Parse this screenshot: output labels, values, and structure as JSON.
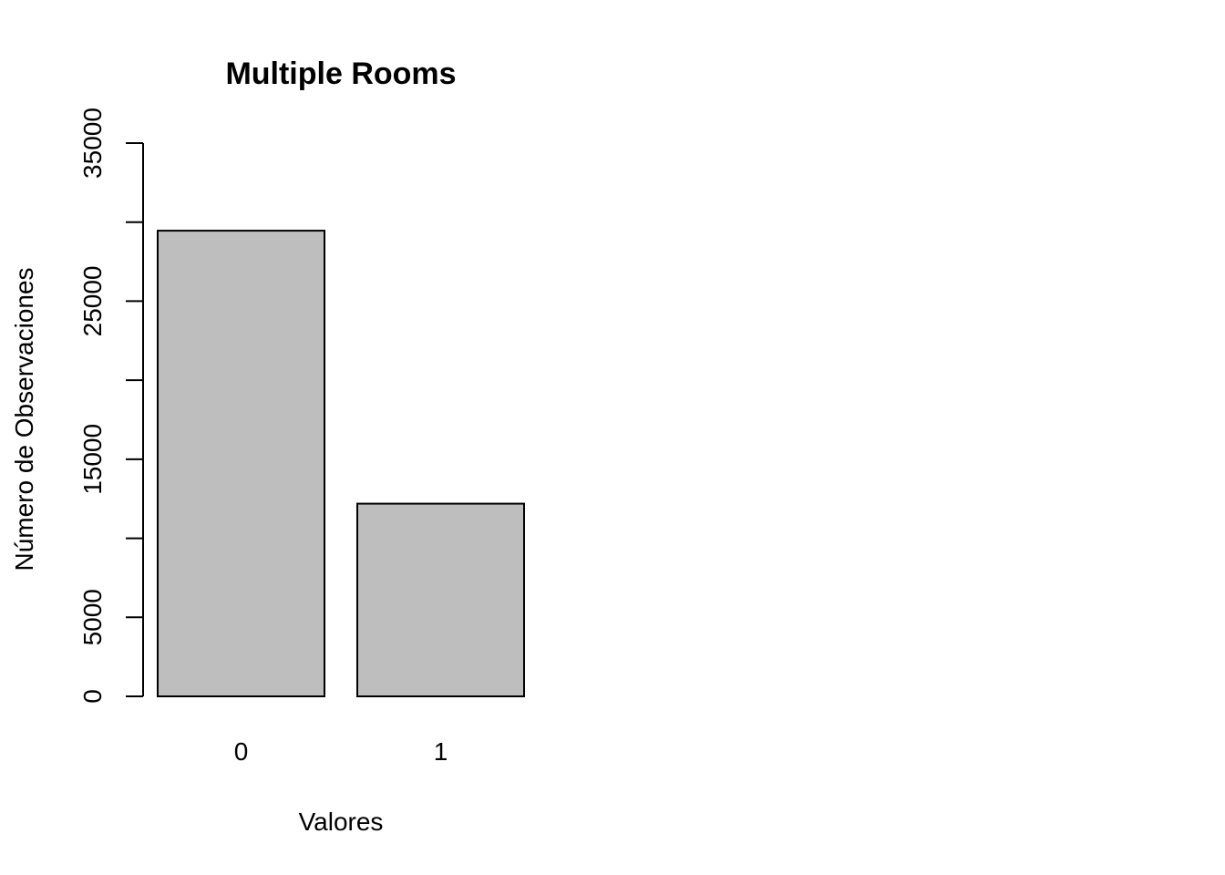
{
  "chart_data": {
    "type": "bar",
    "title": "Multiple Rooms",
    "xlabel": "Valores",
    "ylabel": "Número de Observaciones",
    "categories": [
      "0",
      "1"
    ],
    "values": [
      29460,
      12190
    ],
    "ylim": [
      0,
      35000
    ],
    "yticks": [
      0,
      5000,
      10000,
      15000,
      20000,
      25000,
      30000,
      35000
    ],
    "ytick_labels": [
      "0",
      "5000",
      "",
      "15000",
      "",
      "25000",
      "",
      "35000"
    ],
    "grid": false,
    "legend": "none",
    "bar_color": "#bebebe"
  }
}
